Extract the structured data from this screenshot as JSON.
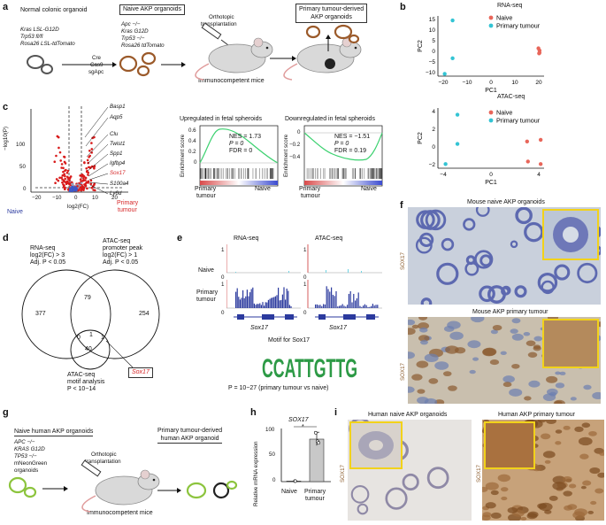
{
  "panels": {
    "a": "a",
    "b": "b",
    "c": "c",
    "d": "d",
    "e": "e",
    "f": "f",
    "g": "g",
    "h": "h",
    "i": "i"
  },
  "a": {
    "normal_title": "Normal colonic organoid",
    "normal_genes": [
      "Kras LSL-G12D",
      "Trp53 fl/fl",
      "Rosa26 LSL-tdTomato"
    ],
    "cre": [
      "Cre",
      "Cas9",
      "sgApc"
    ],
    "naive_title": "Naive AKP organoids",
    "naive_genes": [
      "Apc −/−",
      "Kras G12D",
      "Trp53 −/−",
      "Rosa26 tdTomato"
    ],
    "transplant": [
      "Orthotopic",
      "transplantation"
    ],
    "mice": "Immunocompetent mice",
    "primary_title": [
      "Primary tumour-derived",
      "AKP organoids"
    ]
  },
  "b": {
    "rna_title": "RNA-seq",
    "atac_title": "ATAC-seq",
    "legend": [
      "Naive",
      "Primary tumour"
    ],
    "colors": {
      "naive": "#e8665a",
      "primary": "#33c4d4"
    },
    "rna": {
      "xlabel": "PC1",
      "ylabel": "PC2",
      "xticks": [
        "−20",
        "−10",
        "0",
        "10",
        "20"
      ],
      "yticks": [
        "−10",
        "−5",
        "0",
        "5",
        "10",
        "15"
      ]
    },
    "atac": {
      "xlabel": "PC1",
      "ylabel": "PC2",
      "xticks": [
        "−4",
        "0",
        "4"
      ],
      "yticks": [
        "−2",
        "0",
        "2",
        "4"
      ]
    }
  },
  "chart_data": [
    {
      "type": "scatter",
      "title": "RNA-seq",
      "xlabel": "PC1",
      "ylabel": "PC2",
      "xlim": [
        -25,
        22
      ],
      "ylim": [
        -11,
        16
      ],
      "series": [
        {
          "name": "Naive",
          "points": [
            [
              19.5,
              1.5
            ],
            [
              20,
              0.5
            ],
            [
              20,
              -0.5
            ],
            [
              19.8,
              -0.8
            ]
          ]
        },
        {
          "name": "Primary tumour",
          "points": [
            [
              -18.5,
              14
            ],
            [
              -18.5,
              -3
            ],
            [
              -22,
              -10
            ]
          ]
        }
      ]
    },
    {
      "type": "scatter",
      "title": "ATAC-seq",
      "xlabel": "PC1",
      "ylabel": "PC2",
      "xlim": [
        -6.5,
        6
      ],
      "ylim": [
        -2.6,
        4.6
      ],
      "series": [
        {
          "name": "Naive",
          "points": [
            [
              4,
              0.6
            ],
            [
              5.6,
              0.8
            ],
            [
              4.1,
              -1.8
            ],
            [
              5.6,
              -2.1
            ]
          ]
        },
        {
          "name": "Primary tumour",
          "points": [
            [
              -4.2,
              3.8
            ],
            [
              -4.2,
              0.3
            ],
            [
              -5.6,
              -2.1
            ]
          ]
        }
      ]
    },
    {
      "type": "bar",
      "title": "SOX17",
      "ylabel": "Relative mRNA expression",
      "categories": [
        "Naive",
        "Primary tumour"
      ],
      "values": [
        1,
        80
      ],
      "ylim": [
        0,
        100
      ],
      "yticks": [
        "0",
        "50",
        "100"
      ],
      "significance": "*",
      "points": [
        [
          0,
          1
        ],
        [
          0,
          1
        ],
        [
          0,
          1
        ],
        [
          1,
          92
        ],
        [
          1,
          76
        ],
        [
          1,
          73
        ]
      ]
    }
  ],
  "c": {
    "ylabel": "−log10(P)",
    "xlabel": "log2(FC)",
    "xticks": [
      "−20",
      "−10",
      "0",
      "10",
      "20"
    ],
    "yticks": [
      "0",
      "50",
      "100"
    ],
    "genes": [
      "Basp1",
      "Aqp5",
      "Clu",
      "Twist1",
      "Spp1",
      "Igfbp4",
      "Sox17",
      "S100a4",
      "Ly6d"
    ],
    "naive": "Naive",
    "primary": [
      "Primary",
      "tumour"
    ],
    "gsea_up_title": "Upregulated in fetal spheroids",
    "gsea_down_title": "Downregulated in fetal spheroids",
    "enrich_label": "Enrichment score",
    "up_stats": [
      "NES = 1.73",
      "P = 0",
      "FDR = 0"
    ],
    "down_stats": [
      "NES = −1.51",
      "P = 0",
      "FDR = 0.19"
    ],
    "up_yticks": [
      "0.6",
      "0.4",
      "0.2",
      "0"
    ],
    "down_yticks": [
      "0",
      "−0.2",
      "−0.4"
    ],
    "gsea_primary": [
      "Primary",
      "tumour"
    ],
    "gsea_naive": "Naive"
  },
  "d": {
    "rna": [
      "RNA-seq",
      "log2(FC) > 3",
      "Adj. P < 0.05"
    ],
    "atac": [
      "ATAC-seq",
      "promoter peak",
      "log2(FC) > 1",
      "Adj. P < 0.05"
    ],
    "motif": [
      "ATAC-seq",
      "motif analysis",
      "P < 10−14"
    ],
    "counts": [
      "377",
      "79",
      "254",
      "0",
      "1",
      "1",
      "40"
    ],
    "gene": "Sox17"
  },
  "e": {
    "rna_title": "RNA-seq",
    "atac_title": "ATAC-seq",
    "rows": [
      "Naive",
      "Primary",
      "tumour"
    ],
    "scale_top": [
      "1",
      "0",
      "1",
      "0"
    ],
    "scale_bot": [
      "1",
      "0",
      "1",
      "0"
    ],
    "gene": "Sox17",
    "motif_title": "Motif for Sox17",
    "motif_seq": "CCATTGTTG",
    "pval": "P = 10−27 (primary tumour vs naive)"
  },
  "f": {
    "top_title": "Mouse naive AKP organoids",
    "bot_title": "Mouse AKP primary tumour",
    "stain": "SOX17"
  },
  "g": {
    "naive_title": "Naive human AKP organoids",
    "genes": [
      "APC −/−",
      "KRAS G12D",
      "TP53 −/−",
      "mNeonGreen",
      "organoids"
    ],
    "transplant": [
      "Orthotopic",
      "transplantation"
    ],
    "mice": "Immunocompetent mice",
    "primary_title": [
      "Primary tumour-derived",
      "human AKP organoid"
    ]
  },
  "h": {
    "title": "SOX17",
    "ylabel": "Relative mRNA expression",
    "star": "*",
    "categories": [
      "Naive",
      "Primary",
      "tumour"
    ]
  },
  "i": {
    "left_title": "Human naive AKP organoids",
    "right_title": "Human AKP primary tumour",
    "stain": "SOX17"
  }
}
